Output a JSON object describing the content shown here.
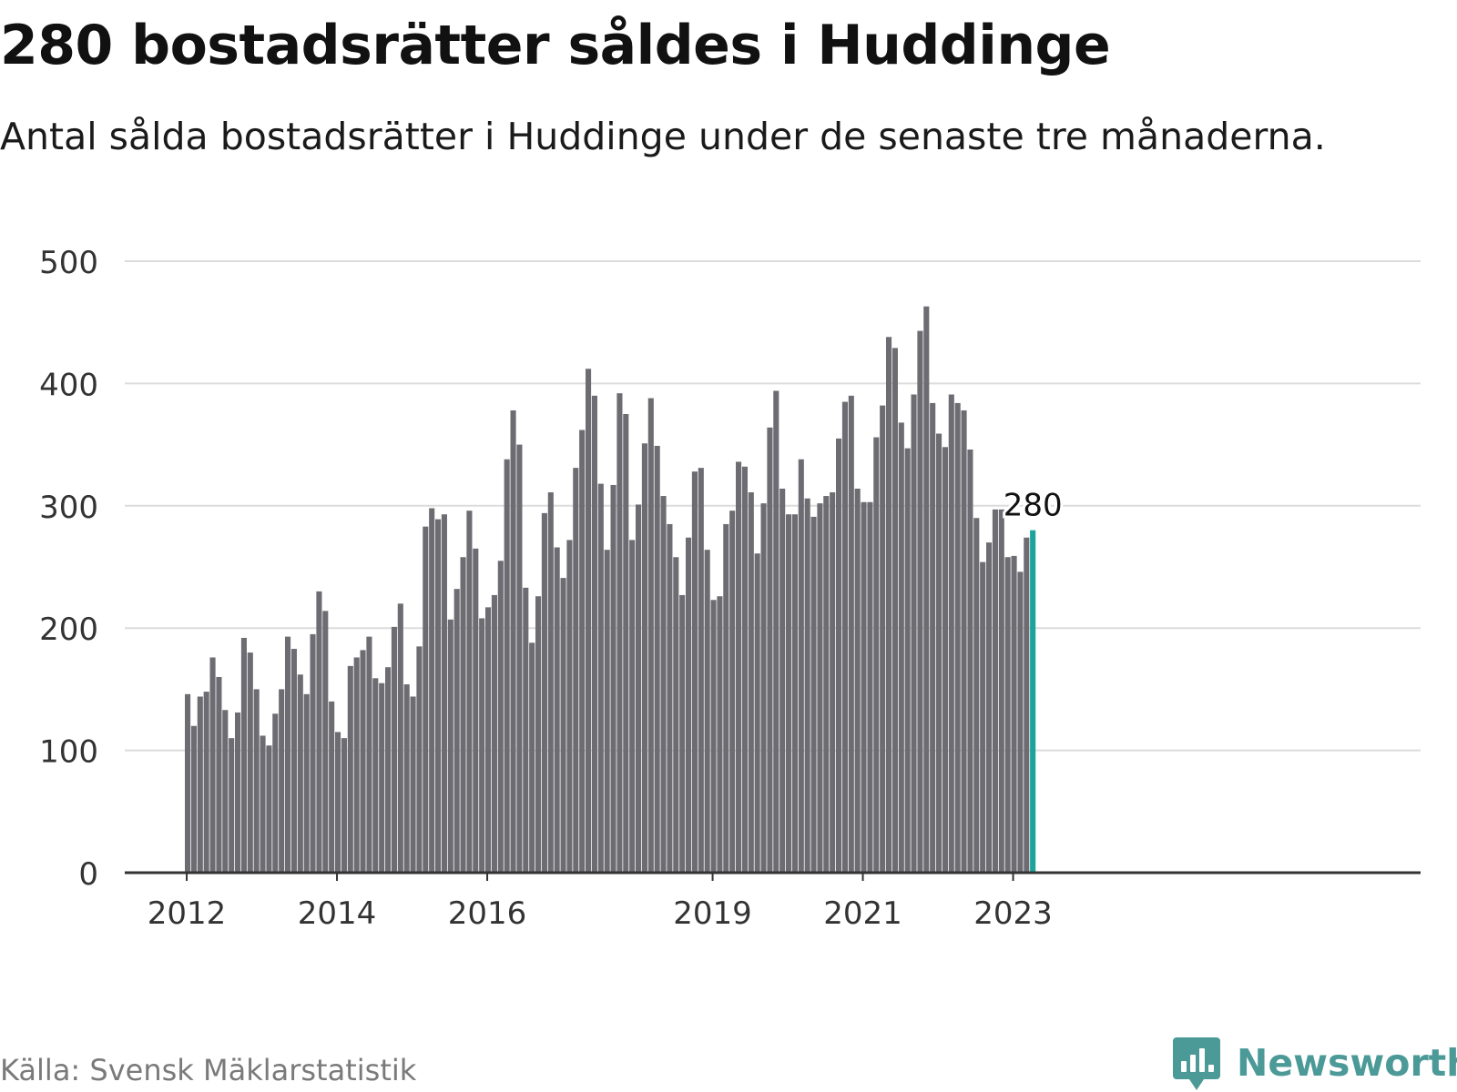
{
  "title": "280 bostadsrätter såldes i Huddinge",
  "subtitle": "Antal sålda bostadsrätter i Huddinge under de senaste tre månaderna.",
  "source": "Källa: Svensk Mäklarstatistik",
  "brand": {
    "name": "Newsworthy",
    "icon": "speech-bubble-bar-chart-icon",
    "color": "#4c9a98"
  },
  "colors": {
    "bar": "#6d6c72",
    "highlight": "#1ba39c",
    "grid": "#dcdcdc",
    "axis": "#333333",
    "tick_text": "#333333"
  },
  "chart_data": {
    "type": "bar",
    "title": "280 bostadsrätter såldes i Huddinge",
    "xlabel": "",
    "ylabel": "",
    "ylim": [
      0,
      500
    ],
    "yticks": [
      0,
      100,
      200,
      300,
      400,
      500
    ],
    "grid": true,
    "start_year": 2012,
    "xticks": [
      {
        "label": "2012",
        "index": 0
      },
      {
        "label": "2014",
        "index": 24
      },
      {
        "label": "2016",
        "index": 48
      },
      {
        "label": "2019",
        "index": 84
      },
      {
        "label": "2021",
        "index": 108
      },
      {
        "label": "2023",
        "index": 132
      }
    ],
    "highlight_label": "280",
    "series": [
      {
        "name": "Sålda bostadsrätter",
        "values": [
          146,
          120,
          144,
          148,
          176,
          160,
          133,
          110,
          131,
          192,
          180,
          150,
          112,
          104,
          130,
          150,
          193,
          183,
          162,
          146,
          195,
          230,
          214,
          140,
          115,
          110,
          169,
          176,
          182,
          193,
          159,
          155,
          168,
          201,
          220,
          154,
          144,
          185,
          283,
          298,
          289,
          293,
          207,
          232,
          258,
          296,
          265,
          208,
          217,
          227,
          255,
          338,
          378,
          350,
          233,
          188,
          226,
          294,
          311,
          266,
          241,
          272,
          331,
          362,
          412,
          390,
          318,
          264,
          317,
          392,
          375,
          272,
          301,
          351,
          388,
          349,
          308,
          285,
          258,
          227,
          274,
          328,
          331,
          264,
          223,
          226,
          285,
          296,
          336,
          332,
          311,
          261,
          302,
          364,
          394,
          314,
          293,
          293,
          338,
          306,
          291,
          302,
          308,
          311,
          355,
          385,
          390,
          314,
          303,
          303,
          356,
          382,
          438,
          429,
          368,
          347,
          391,
          443,
          463,
          384,
          359,
          348,
          391,
          384,
          378,
          346,
          290,
          254,
          270,
          297,
          297,
          258,
          259,
          246,
          274,
          280
        ]
      }
    ]
  }
}
